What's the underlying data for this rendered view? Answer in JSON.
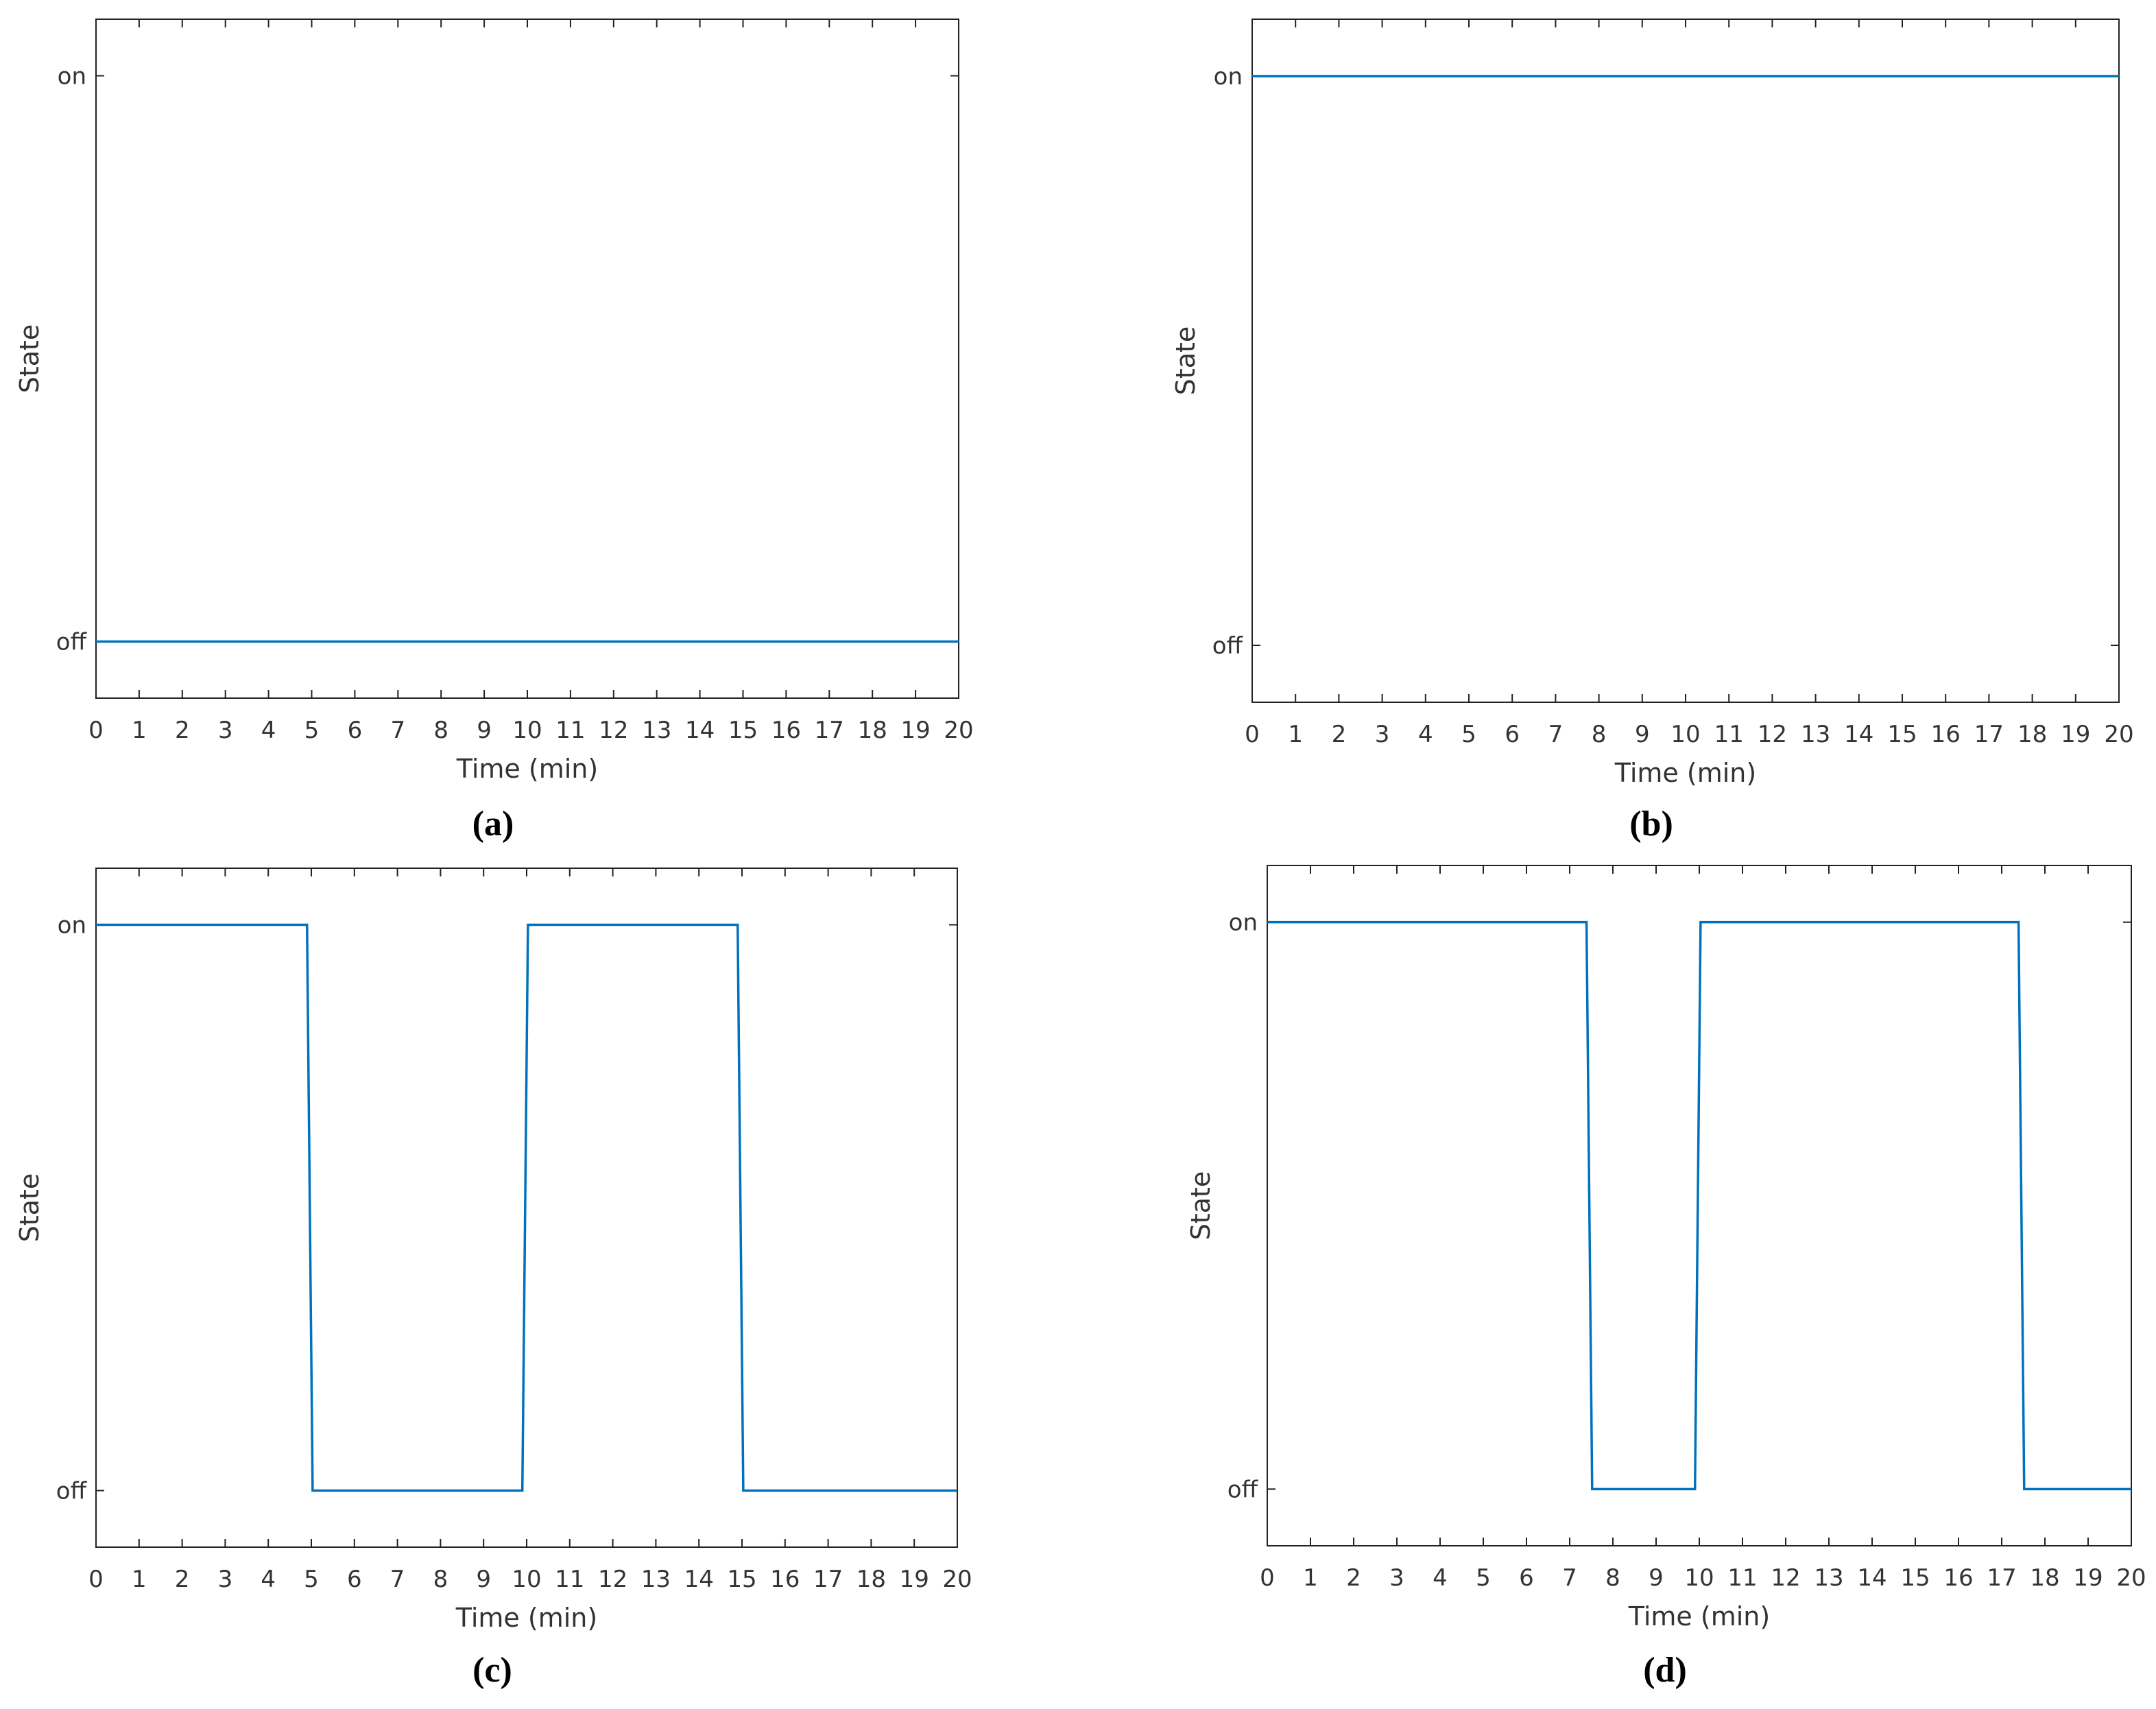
{
  "chart_data": [
    {
      "type": "line",
      "label": "(a)",
      "xlabel": "Time (min)",
      "ylabel": "State",
      "x": [
        0,
        20
      ],
      "values": [
        0,
        0
      ],
      "color": "#0072bd",
      "xlim": [
        0,
        20
      ],
      "xticks": [
        0,
        1,
        2,
        3,
        4,
        5,
        6,
        7,
        8,
        9,
        10,
        11,
        12,
        13,
        14,
        15,
        16,
        17,
        18,
        19,
        20
      ],
      "ylim": [
        -0.1,
        1.1
      ],
      "yticks": [
        {
          "value": 0,
          "label": "off"
        },
        {
          "value": 1,
          "label": "on"
        }
      ]
    },
    {
      "type": "line",
      "label": "(b)",
      "xlabel": "Time (min)",
      "ylabel": "State",
      "x": [
        0,
        20
      ],
      "values": [
        1,
        1
      ],
      "color": "#0072bd",
      "xlim": [
        0,
        20
      ],
      "xticks": [
        0,
        1,
        2,
        3,
        4,
        5,
        6,
        7,
        8,
        9,
        10,
        11,
        12,
        13,
        14,
        15,
        16,
        17,
        18,
        19,
        20
      ],
      "ylim": [
        -0.1,
        1.1
      ],
      "yticks": [
        {
          "value": 0,
          "label": "off"
        },
        {
          "value": 1,
          "label": "on"
        }
      ]
    },
    {
      "type": "line",
      "label": "(c)",
      "xlabel": "Time (min)",
      "ylabel": "State",
      "x": [
        0,
        4.9,
        5.03,
        9.9,
        10.03,
        14.9,
        15.03,
        20
      ],
      "values": [
        1,
        1,
        0,
        0,
        1,
        1,
        0,
        0
      ],
      "color": "#0072bd",
      "xlim": [
        0,
        20
      ],
      "xticks": [
        0,
        1,
        2,
        3,
        4,
        5,
        6,
        7,
        8,
        9,
        10,
        11,
        12,
        13,
        14,
        15,
        16,
        17,
        18,
        19,
        20
      ],
      "ylim": [
        -0.1,
        1.1
      ],
      "yticks": [
        {
          "value": 0,
          "label": "off"
        },
        {
          "value": 1,
          "label": "on"
        }
      ]
    },
    {
      "type": "line",
      "label": "(d)",
      "xlabel": "Time (min)",
      "ylabel": "State",
      "x": [
        0,
        7.39,
        7.52,
        9.9,
        10.03,
        17.39,
        17.52,
        20
      ],
      "values": [
        1,
        1,
        0,
        0,
        1,
        1,
        0,
        0
      ],
      "color": "#0072bd",
      "xlim": [
        0,
        20
      ],
      "xticks": [
        0,
        1,
        2,
        3,
        4,
        5,
        6,
        7,
        8,
        9,
        10,
        11,
        12,
        13,
        14,
        15,
        16,
        17,
        18,
        19,
        20
      ],
      "ylim": [
        -0.1,
        1.1
      ],
      "yticks": [
        {
          "value": 0,
          "label": "off"
        },
        {
          "value": 1,
          "label": "on"
        }
      ]
    }
  ]
}
